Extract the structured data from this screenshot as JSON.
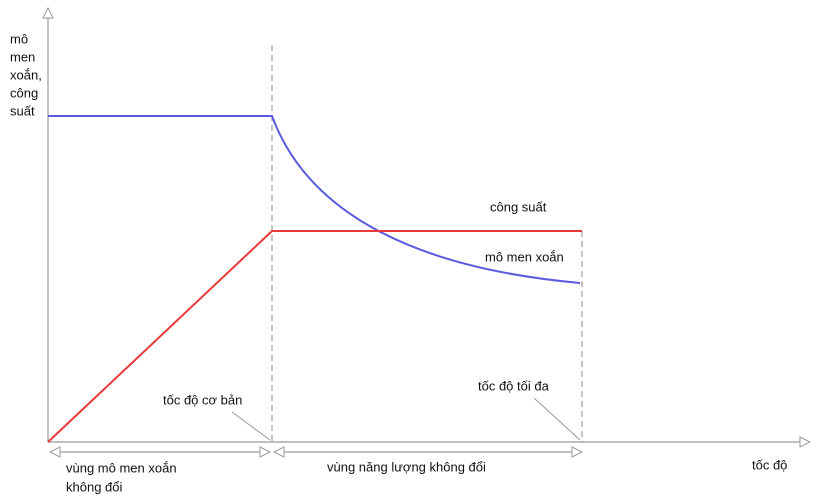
{
  "y_axis_label": [
    "mô",
    "men",
    "xoắn,",
    "công",
    "suất"
  ],
  "x_axis_label": "tốc độ",
  "curves": {
    "power": "công suất",
    "torque": "mô men xoắn"
  },
  "points": {
    "base_speed": "tốc độ cơ bản",
    "max_speed": "tốc độ tối đa"
  },
  "regions": {
    "constant_torque": [
      "vùng mô men xoắn",
      "không đổi"
    ],
    "constant_power": "vùng năng lượng không đổi"
  }
}
